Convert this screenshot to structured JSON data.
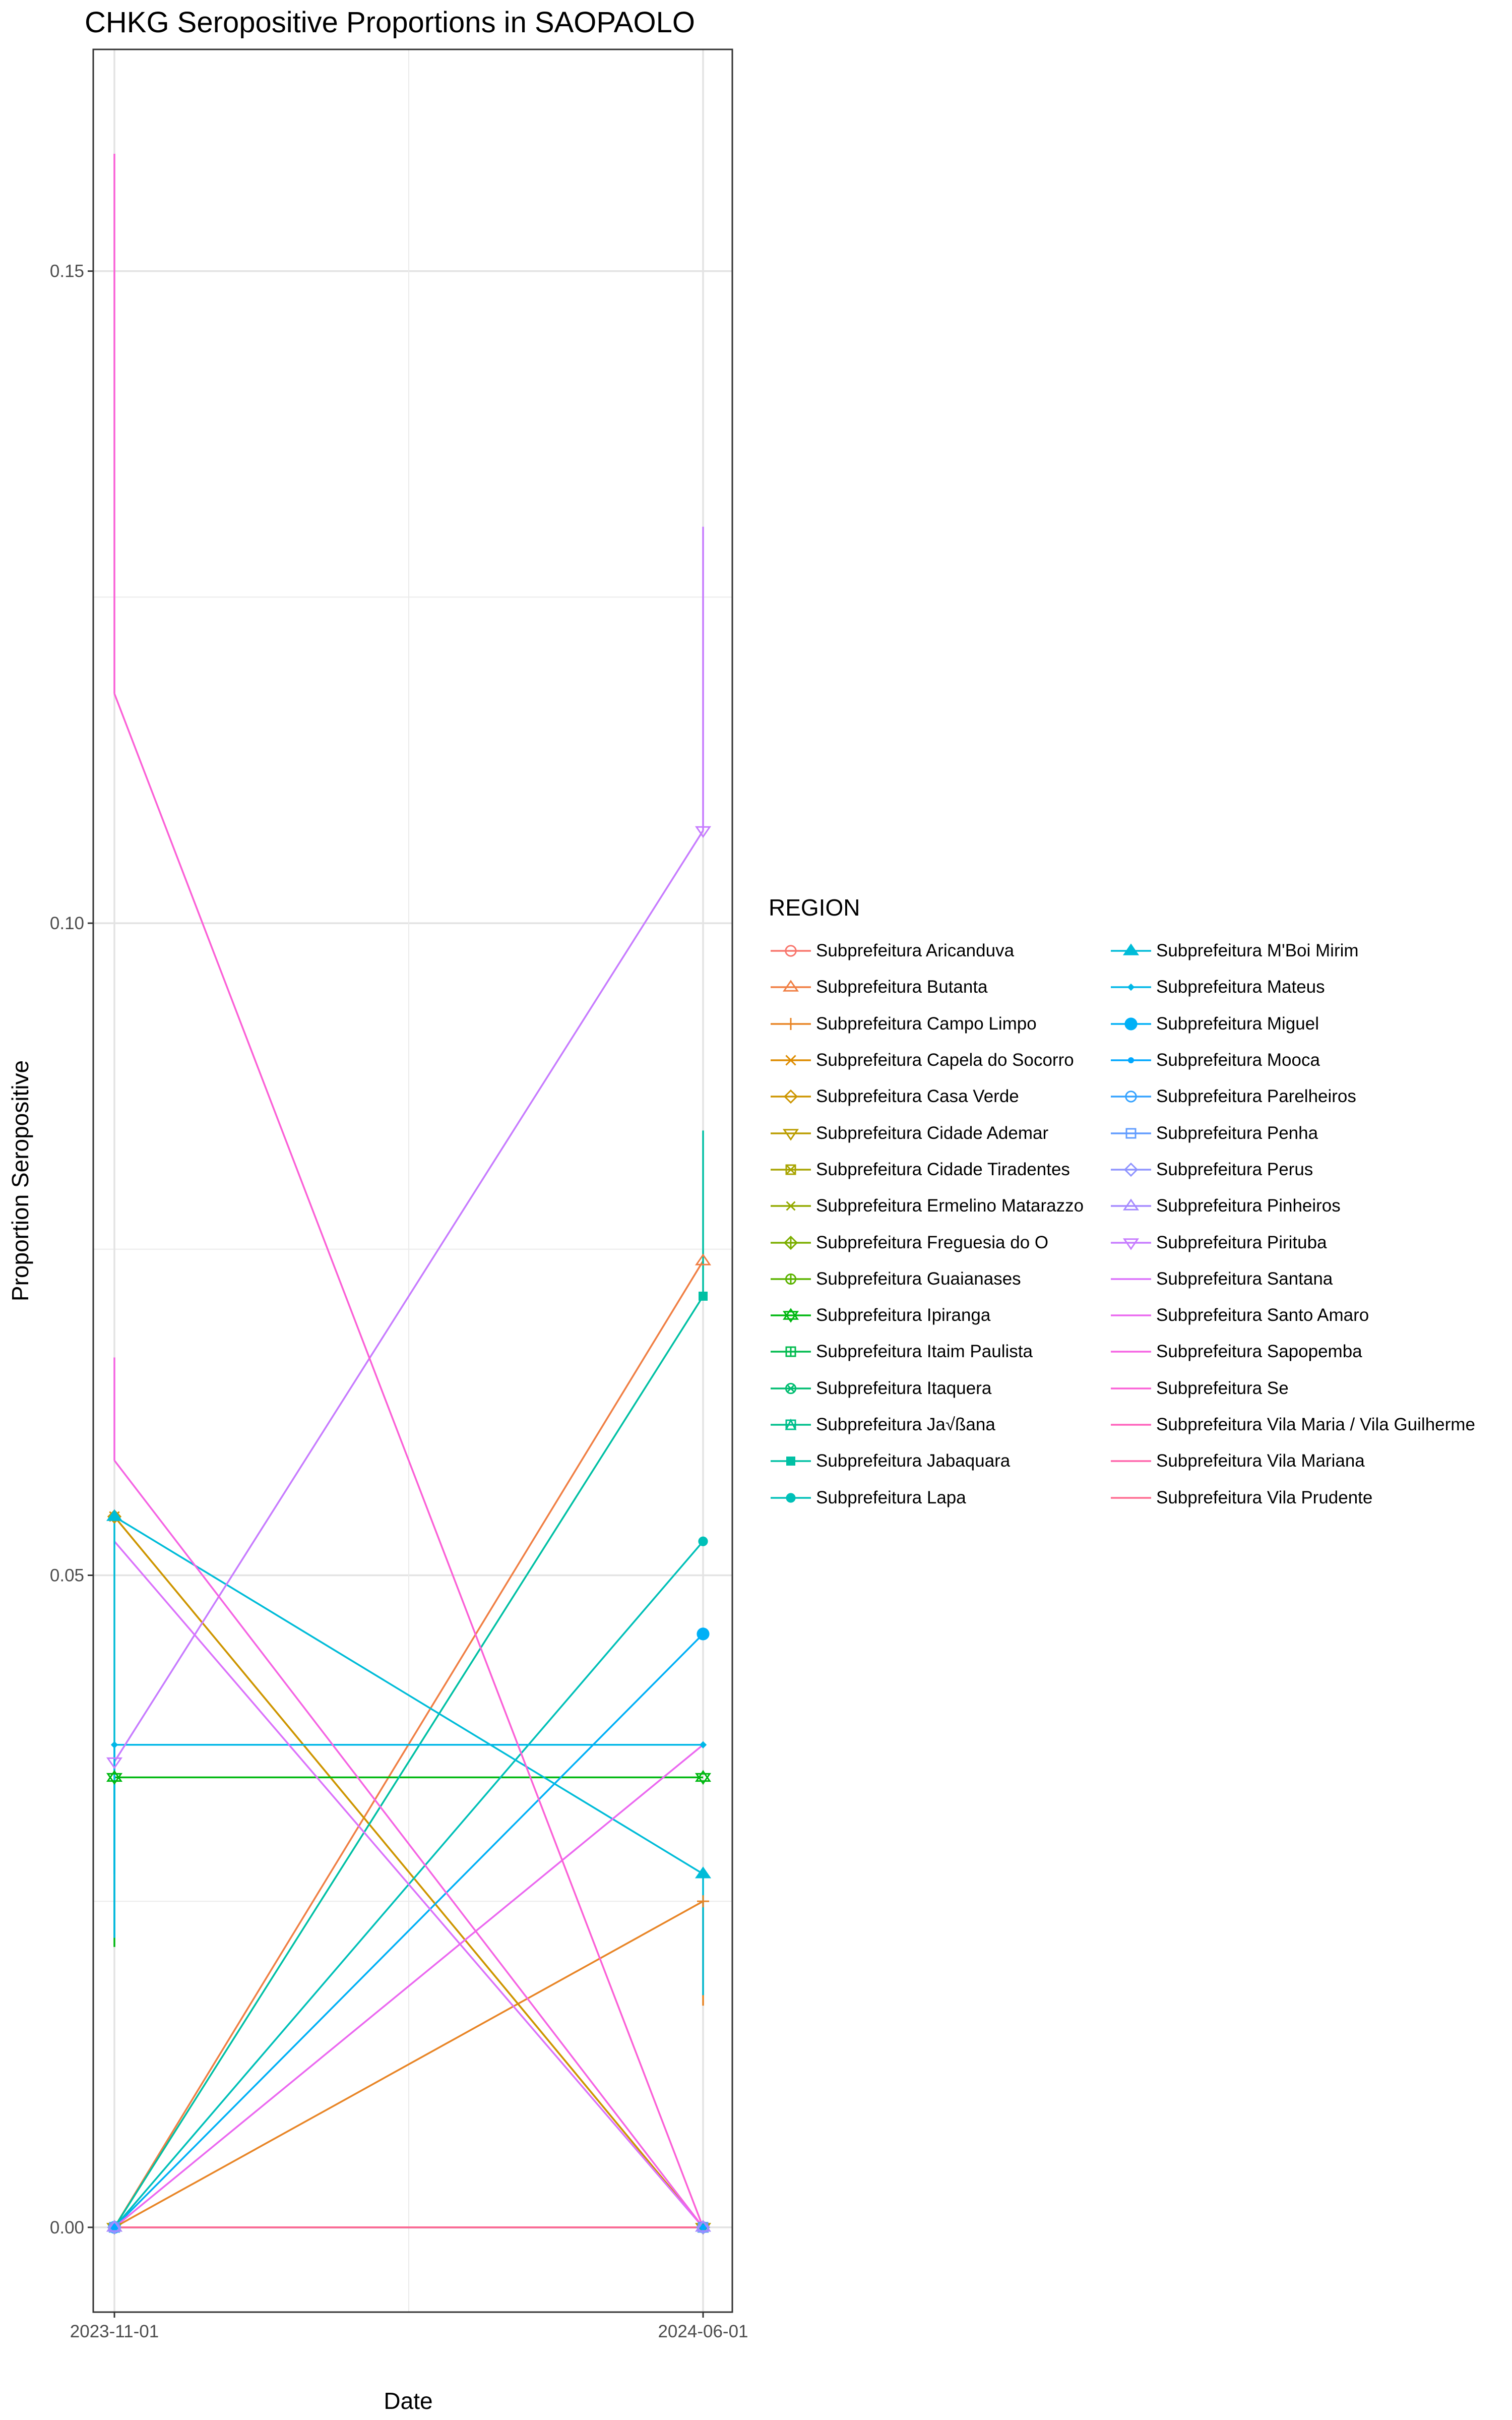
{
  "chart_data": {
    "type": "line",
    "title": "CHKG Seropositive Proportions in SAOPAOLO",
    "xlabel": "Date",
    "ylabel": "Proportion Seropositive",
    "x": [
      "2023-11-01",
      "2024-06-01"
    ],
    "ylim": [
      -0.0065,
      0.167
    ],
    "yticks": [
      0.0,
      0.05,
      0.1,
      0.15
    ],
    "ytick_labels": [
      "0.00",
      "0.05",
      "0.10",
      "0.15"
    ],
    "grid": true,
    "legend_title": "REGION",
    "legend_position": "right",
    "series": [
      {
        "name": "Subprefeitura Aricanduva",
        "color": "#F8766D",
        "marker": "circle-open",
        "values": [
          0.0,
          0.0
        ]
      },
      {
        "name": "Subprefeitura Butanta",
        "color": "#F07F44",
        "marker": "triangle-open",
        "values": [
          0.0,
          0.0741
        ],
        "error": [
          null,
          null
        ]
      },
      {
        "name": "Subprefeitura Campo Limpo",
        "color": "#E88526",
        "marker": "plus",
        "values": [
          0.0,
          0.025
        ],
        "error": [
          null,
          [
            0.017,
            0.025
          ]
        ]
      },
      {
        "name": "Subprefeitura Capela do Socorro",
        "color": "#DE8C00",
        "marker": "x",
        "values": [
          0.0545,
          0.0
        ],
        "error": [
          null,
          null
        ]
      },
      {
        "name": "Subprefeitura Casa Verde",
        "color": "#CD9600",
        "marker": "diamond-open",
        "values": [
          0.0545,
          0.0
        ]
      },
      {
        "name": "Subprefeitura Cidade Ademar",
        "color": "#BB9D00",
        "marker": "triangle-down-open",
        "values": [
          0.0,
          0.0
        ]
      },
      {
        "name": "Subprefeitura Cidade Tiradentes",
        "color": "#A8A400",
        "marker": "square-x",
        "values": [
          0.0,
          0.0
        ]
      },
      {
        "name": "Subprefeitura Ermelino Matarazzo",
        "color": "#93AA00",
        "marker": "asterisk",
        "values": [
          0.0,
          0.0
        ]
      },
      {
        "name": "Subprefeitura Freguesia do O",
        "color": "#7CAE00",
        "marker": "diamond-plus",
        "values": [
          0.0,
          0.0
        ]
      },
      {
        "name": "Subprefeitura Guaianases",
        "color": "#5BB300",
        "marker": "circle-plus",
        "values": [
          0.0,
          0.0
        ]
      },
      {
        "name": "Subprefeitura Ipiranga",
        "color": "#00B811",
        "marker": "star-of-david",
        "values": [
          0.0345,
          0.0345
        ],
        "error": [
          [
            0.0215,
            0.0345
          ],
          null
        ]
      },
      {
        "name": "Subprefeitura Itaim Paulista",
        "color": "#00BB4E",
        "marker": "square-plus",
        "values": [
          0.0,
          0.0
        ]
      },
      {
        "name": "Subprefeitura Itaquera",
        "color": "#00BD71",
        "marker": "circle-x",
        "values": [
          0.0,
          0.0
        ]
      },
      {
        "name": "Subprefeitura Ja√ßana",
        "color": "#00BF8C",
        "marker": "square-triangle",
        "values": [
          0.0,
          0.0
        ]
      },
      {
        "name": "Subprefeitura Jabaquara",
        "color": "#00C0A4",
        "marker": "square-filled",
        "values": [
          0.0,
          0.0714
        ],
        "error": [
          null,
          [
            0.0714,
            0.0841
          ]
        ]
      },
      {
        "name": "Subprefeitura Lapa",
        "color": "#00C0B8",
        "marker": "circle-filled",
        "values": [
          0.0,
          0.0526
        ]
      },
      {
        "name": "Subprefeitura M'Boi Mirim",
        "color": "#00BCD8",
        "marker": "triangle-filled",
        "values": [
          0.0545,
          0.0271
        ],
        "error": [
          [
            0.0271,
            0.0545
          ],
          [
            0.0178,
            0.0271
          ]
        ]
      },
      {
        "name": "Subprefeitura Mateus",
        "color": "#00B7E7",
        "marker": "diamond-small",
        "values": [
          0.037,
          0.037
        ],
        "error": [
          [
            0.0222,
            0.037
          ],
          null
        ]
      },
      {
        "name": "Subprefeitura Miguel",
        "color": "#00B0F6",
        "marker": "circle-large",
        "values": [
          0.0,
          0.0455
        ]
      },
      {
        "name": "Subprefeitura Mooca",
        "color": "#00A8FF",
        "marker": "circle-small",
        "values": [
          0.0,
          0.0
        ]
      },
      {
        "name": "Subprefeitura Parelheiros",
        "color": "#35A2FF",
        "marker": "circle-open",
        "values": [
          0.0,
          0.0
        ]
      },
      {
        "name": "Subprefeitura Penha",
        "color": "#619CFF",
        "marker": "square-open",
        "values": [
          0.0,
          0.0
        ]
      },
      {
        "name": "Subprefeitura Perus",
        "color": "#8E93FF",
        "marker": "diamond-open",
        "values": [
          0.0,
          0.0
        ]
      },
      {
        "name": "Subprefeitura Pinheiros",
        "color": "#A58AFF",
        "marker": "triangle-open",
        "values": [
          0.0,
          0.0
        ]
      },
      {
        "name": "Subprefeitura Pirituba",
        "color": "#C77CFF",
        "marker": "triangle-down-open",
        "values": [
          0.0357,
          0.1071
        ],
        "error": [
          null,
          [
            0.1071,
            0.1304
          ]
        ]
      },
      {
        "name": "Subprefeitura Santana",
        "color": "#DB72FB",
        "marker": "none",
        "values": [
          0.0526,
          0.0
        ]
      },
      {
        "name": "Subprefeitura Santo Amaro",
        "color": "#EB68F0",
        "marker": "none",
        "values": [
          0.0,
          0.037
        ]
      },
      {
        "name": "Subprefeitura Sapopemba",
        "color": "#F564E3",
        "marker": "none",
        "values": [
          0.0588,
          0.0
        ],
        "error": [
          [
            0.0588,
            0.0667
          ],
          null
        ]
      },
      {
        "name": "Subprefeitura Se",
        "color": "#FB61D7",
        "marker": "none",
        "values": [
          0.1176,
          0.0
        ],
        "error": [
          [
            0.1176,
            0.159
          ],
          null
        ]
      },
      {
        "name": "Subprefeitura Vila Maria / Vila Guilherme",
        "color": "#FF62BC",
        "marker": "none",
        "values": [
          0.0,
          0.0
        ]
      },
      {
        "name": "Subprefeitura Vila Mariana",
        "color": "#FF65AC",
        "marker": "none",
        "values": [
          0.0,
          0.0
        ]
      },
      {
        "name": "Subprefeitura Vila Prudente",
        "color": "#FF6C91",
        "marker": "none",
        "values": [
          0.0,
          0.0
        ]
      }
    ]
  }
}
